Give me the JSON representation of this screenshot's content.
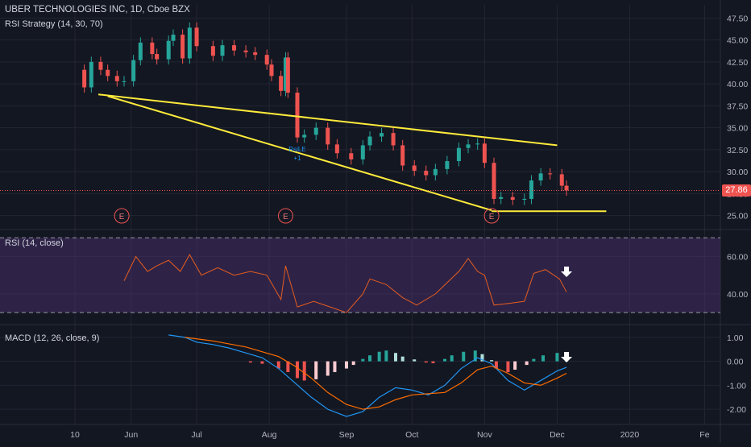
{
  "header": {
    "symbol_line": "UBER TECHNOLOGIES INC, 1D, Cboe BZX",
    "strategy": "RSI Strategy (14, 30, 70)"
  },
  "last_price": "27.86",
  "colors": {
    "background": "#131722",
    "up": "#26a69a",
    "down": "#ef5350",
    "trendline": "#ffeb3b",
    "rsi_line": "#e65c1e",
    "rsi_band": "#4a2f6b",
    "macd_line": "#2196f3",
    "signal_line": "#ff6d00",
    "hist_up_strong": "#26a69a",
    "hist_up_weak": "#b2dfdb",
    "hist_down_strong": "#ef5350",
    "hist_down_weak": "#ffcdd2",
    "grid": "#232632",
    "axis_text": "#b2b5be"
  },
  "x_axis": {
    "ticks": [
      {
        "label": "10",
        "date": "2019-05-10"
      },
      {
        "label": "Jun",
        "date": "2019-06-03"
      },
      {
        "label": "Jul",
        "date": "2019-07-01"
      },
      {
        "label": "Aug",
        "date": "2019-08-01"
      },
      {
        "label": "Sep",
        "date": "2019-09-03"
      },
      {
        "label": "Oct",
        "date": "2019-10-01"
      },
      {
        "label": "Nov",
        "date": "2019-11-01"
      },
      {
        "label": "Dec",
        "date": "2019-12-02"
      },
      {
        "label": "2020",
        "date": "2020-01-02"
      },
      {
        "label": "Fe",
        "date": "2020-02-03"
      }
    ]
  },
  "earnings_markers": [
    {
      "label": "E",
      "date": "2019-05-30"
    },
    {
      "label": "E",
      "date": "2019-08-08"
    },
    {
      "label": "E",
      "date": "2019-11-04"
    }
  ],
  "strategy_signal": {
    "label": "RsiLE",
    "sub": "+1",
    "date": "2019-08-13"
  },
  "chart_data": [
    {
      "type": "candlestick",
      "pane": "price",
      "y_ticks": [
        "25.00",
        "27.50",
        "30.00",
        "32.50",
        "35.00",
        "37.50",
        "40.00",
        "42.50",
        "45.00",
        "47.50"
      ],
      "ylim": [
        23.5,
        49
      ],
      "close_series": [
        [
          "2019-05-10",
          41.6
        ],
        [
          "2019-05-14",
          39.6
        ],
        [
          "2019-05-17",
          42.5
        ],
        [
          "2019-05-21",
          41.6
        ],
        [
          "2019-05-24",
          40.9
        ],
        [
          "2019-05-28",
          40.3
        ],
        [
          "2019-05-31",
          40.3
        ],
        [
          "2019-06-04",
          42.7
        ],
        [
          "2019-06-07",
          44.7
        ],
        [
          "2019-06-12",
          43.4
        ],
        [
          "2019-06-14",
          42.8
        ],
        [
          "2019-06-19",
          44.9
        ],
        [
          "2019-06-21",
          45.6
        ],
        [
          "2019-06-25",
          42.9
        ],
        [
          "2019-06-28",
          46.4
        ],
        [
          "2019-07-01",
          44.3
        ],
        [
          "2019-07-08",
          43.2
        ],
        [
          "2019-07-12",
          44.4
        ],
        [
          "2019-07-17",
          43.8
        ],
        [
          "2019-07-22",
          43.6
        ],
        [
          "2019-07-26",
          43.3
        ],
        [
          "2019-07-31",
          42.2
        ],
        [
          "2019-08-02",
          40.9
        ],
        [
          "2019-08-06",
          39.2
        ],
        [
          "2019-08-08",
          43.0
        ],
        [
          "2019-08-09",
          39.0
        ],
        [
          "2019-08-13",
          33.9
        ],
        [
          "2019-08-16",
          34.2
        ],
        [
          "2019-08-21",
          35.0
        ],
        [
          "2019-08-26",
          33.1
        ],
        [
          "2019-08-30",
          32.1
        ],
        [
          "2019-09-05",
          31.4
        ],
        [
          "2019-09-10",
          33.0
        ],
        [
          "2019-09-13",
          34.0
        ],
        [
          "2019-09-18",
          34.4
        ],
        [
          "2019-09-23",
          33.0
        ],
        [
          "2019-09-27",
          30.7
        ],
        [
          "2019-10-02",
          30.1
        ],
        [
          "2019-10-07",
          29.6
        ],
        [
          "2019-10-11",
          30.3
        ],
        [
          "2019-10-16",
          31.2
        ],
        [
          "2019-10-21",
          32.7
        ],
        [
          "2019-10-25",
          33.1
        ],
        [
          "2019-10-29",
          33.2
        ],
        [
          "2019-11-01",
          31.0
        ],
        [
          "2019-11-05",
          26.9
        ],
        [
          "2019-11-08",
          27.1
        ],
        [
          "2019-11-13",
          26.8
        ],
        [
          "2019-11-18",
          26.9
        ],
        [
          "2019-11-21",
          29.0
        ],
        [
          "2019-11-25",
          29.8
        ],
        [
          "2019-11-29",
          29.7
        ],
        [
          "2019-12-04",
          28.4
        ],
        [
          "2019-12-06",
          27.86
        ]
      ],
      "trendlines": [
        {
          "from": [
            "2019-05-20",
            38.8
          ],
          "to": [
            "2019-12-02",
            33.0
          ]
        },
        {
          "from": [
            "2019-05-24",
            38.6
          ],
          "to": [
            "2019-11-04",
            25.6
          ]
        },
        {
          "from": [
            "2019-11-04",
            25.5
          ],
          "to": [
            "2019-12-23",
            25.5
          ]
        }
      ]
    },
    {
      "type": "line",
      "pane": "rsi",
      "title": "RSI (14, close)",
      "y_ticks": [
        "40.00",
        "60.00"
      ],
      "ylim": [
        24,
        74
      ],
      "bands": [
        30,
        70
      ],
      "series": [
        {
          "points": [
            [
              "2019-05-31",
              47
            ],
            [
              "2019-06-05",
              60
            ],
            [
              "2019-06-10",
              52
            ],
            [
              "2019-06-14",
              55
            ],
            [
              "2019-06-19",
              58
            ],
            [
              "2019-06-24",
              52
            ],
            [
              "2019-06-28",
              61
            ],
            [
              "2019-07-03",
              50
            ],
            [
              "2019-07-10",
              54
            ],
            [
              "2019-07-17",
              50
            ],
            [
              "2019-07-24",
              52
            ],
            [
              "2019-07-31",
              50
            ],
            [
              "2019-08-06",
              37
            ],
            [
              "2019-08-08",
              55
            ],
            [
              "2019-08-13",
              33
            ],
            [
              "2019-08-20",
              36
            ],
            [
              "2019-08-27",
              33
            ],
            [
              "2019-09-03",
              30
            ],
            [
              "2019-09-10",
              40
            ],
            [
              "2019-09-13",
              48
            ],
            [
              "2019-09-20",
              45
            ],
            [
              "2019-09-27",
              38
            ],
            [
              "2019-10-03",
              34
            ],
            [
              "2019-10-11",
              40
            ],
            [
              "2019-10-21",
              52
            ],
            [
              "2019-10-25",
              59
            ],
            [
              "2019-10-29",
              52
            ],
            [
              "2019-11-01",
              50
            ],
            [
              "2019-11-05",
              34
            ],
            [
              "2019-11-12",
              35
            ],
            [
              "2019-11-18",
              36
            ],
            [
              "2019-11-22",
              51
            ],
            [
              "2019-11-27",
              53
            ],
            [
              "2019-12-03",
              48
            ],
            [
              "2019-12-06",
              41
            ]
          ]
        }
      ],
      "signal_arrow": {
        "date": "2019-12-06",
        "direction": "down"
      }
    },
    {
      "type": "line",
      "pane": "macd",
      "title": "MACD (12, 26, close, 9)",
      "y_ticks": [
        "-2.00",
        "-1.00",
        "0.00",
        "1.00"
      ],
      "ylim": [
        -2.6,
        1.5
      ],
      "series": [
        {
          "role": "macd",
          "points": [
            [
              "2019-06-19",
              1.1
            ],
            [
              "2019-06-26",
              1.0
            ],
            [
              "2019-07-01",
              0.8
            ],
            [
              "2019-07-08",
              0.7
            ],
            [
              "2019-07-15",
              0.55
            ],
            [
              "2019-07-22",
              0.35
            ],
            [
              "2019-07-29",
              0.15
            ],
            [
              "2019-08-05",
              -0.3
            ],
            [
              "2019-08-12",
              -0.9
            ],
            [
              "2019-08-19",
              -1.5
            ],
            [
              "2019-08-26",
              -2.0
            ],
            [
              "2019-09-03",
              -2.3
            ],
            [
              "2019-09-10",
              -2.1
            ],
            [
              "2019-09-17",
              -1.5
            ],
            [
              "2019-09-24",
              -1.1
            ],
            [
              "2019-10-01",
              -1.2
            ],
            [
              "2019-10-08",
              -1.4
            ],
            [
              "2019-10-15",
              -1.0
            ],
            [
              "2019-10-22",
              -0.3
            ],
            [
              "2019-10-29",
              0.15
            ],
            [
              "2019-11-04",
              -0.1
            ],
            [
              "2019-11-11",
              -0.8
            ],
            [
              "2019-11-18",
              -1.2
            ],
            [
              "2019-11-25",
              -0.8
            ],
            [
              "2019-12-02",
              -0.4
            ],
            [
              "2019-12-06",
              -0.25
            ]
          ]
        },
        {
          "role": "signal",
          "points": [
            [
              "2019-06-26",
              1.0
            ],
            [
              "2019-07-08",
              0.85
            ],
            [
              "2019-07-22",
              0.6
            ],
            [
              "2019-08-05",
              0.2
            ],
            [
              "2019-08-12",
              -0.2
            ],
            [
              "2019-08-19",
              -0.7
            ],
            [
              "2019-08-26",
              -1.3
            ],
            [
              "2019-09-03",
              -1.8
            ],
            [
              "2019-09-10",
              -2.0
            ],
            [
              "2019-09-17",
              -1.9
            ],
            [
              "2019-09-24",
              -1.6
            ],
            [
              "2019-10-01",
              -1.4
            ],
            [
              "2019-10-08",
              -1.35
            ],
            [
              "2019-10-15",
              -1.3
            ],
            [
              "2019-10-22",
              -0.9
            ],
            [
              "2019-10-29",
              -0.35
            ],
            [
              "2019-11-04",
              -0.2
            ],
            [
              "2019-11-11",
              -0.5
            ],
            [
              "2019-11-18",
              -0.9
            ],
            [
              "2019-11-25",
              -1.0
            ],
            [
              "2019-12-02",
              -0.7
            ],
            [
              "2019-12-06",
              -0.5
            ]
          ]
        }
      ],
      "histogram": [
        [
          "2019-07-24",
          -0.05
        ],
        [
          "2019-07-29",
          -0.1
        ],
        [
          "2019-08-05",
          -0.3
        ],
        [
          "2019-08-09",
          -0.45
        ],
        [
          "2019-08-13",
          -0.7
        ],
        [
          "2019-08-16",
          -0.8
        ],
        [
          "2019-08-21",
          -0.75
        ],
        [
          "2019-08-26",
          -0.6
        ],
        [
          "2019-08-29",
          -0.45
        ],
        [
          "2019-09-03",
          -0.3
        ],
        [
          "2019-09-06",
          -0.15
        ],
        [
          "2019-09-10",
          0.1
        ],
        [
          "2019-09-13",
          0.25
        ],
        [
          "2019-09-17",
          0.4
        ],
        [
          "2019-09-20",
          0.45
        ],
        [
          "2019-09-24",
          0.35
        ],
        [
          "2019-09-27",
          0.2
        ],
        [
          "2019-10-02",
          0.08
        ],
        [
          "2019-10-07",
          -0.05
        ],
        [
          "2019-10-10",
          -0.08
        ],
        [
          "2019-10-15",
          0.1
        ],
        [
          "2019-10-18",
          0.25
        ],
        [
          "2019-10-23",
          0.4
        ],
        [
          "2019-10-28",
          0.45
        ],
        [
          "2019-10-31",
          0.3
        ],
        [
          "2019-11-04",
          0.05
        ],
        [
          "2019-11-06",
          -0.3
        ],
        [
          "2019-11-11",
          -0.45
        ],
        [
          "2019-11-14",
          -0.35
        ],
        [
          "2019-11-19",
          -0.15
        ],
        [
          "2019-11-22",
          0.1
        ],
        [
          "2019-11-26",
          0.25
        ],
        [
          "2019-12-02",
          0.35
        ],
        [
          "2019-12-06",
          0.25
        ]
      ],
      "signal_arrow": {
        "date": "2019-12-06",
        "direction": "down"
      }
    }
  ]
}
